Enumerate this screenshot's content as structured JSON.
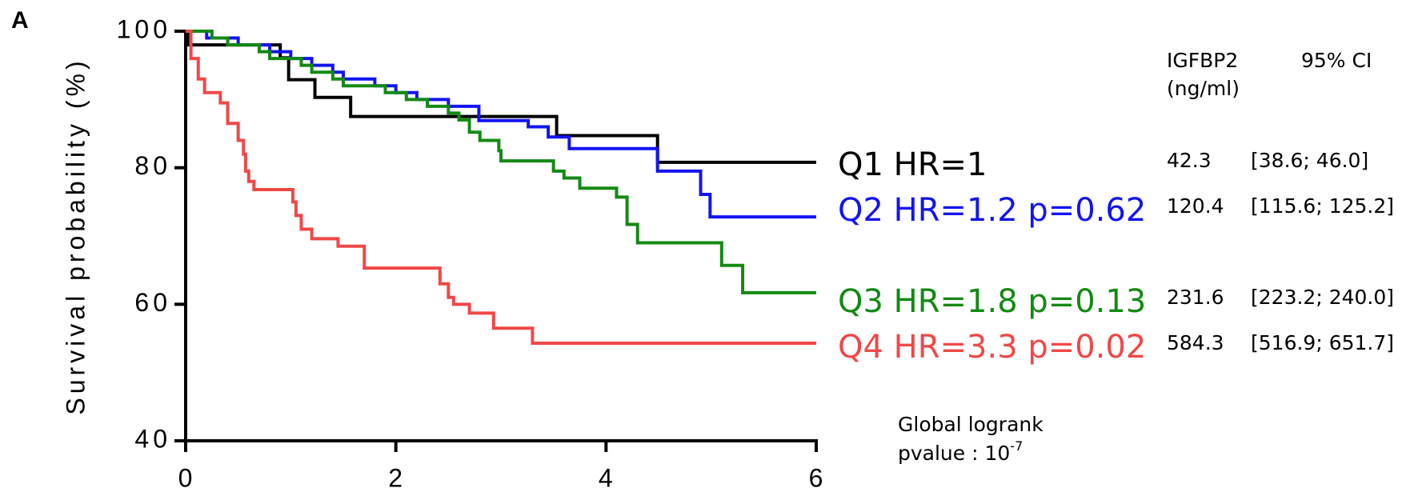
{
  "chart_data": {
    "type": "step",
    "panel": "A",
    "ylabel": "Survival probability (%)",
    "xlim": [
      0,
      6
    ],
    "xticks": [
      0,
      2,
      4,
      6
    ],
    "ylim": [
      40,
      100
    ],
    "yticks": [
      40,
      60,
      80,
      100
    ],
    "table_header": [
      "IGFBP2",
      "(ng/ml)",
      "95% CI"
    ],
    "logrank": [
      "Global logrank",
      "pvalue : 10",
      "-7"
    ],
    "series": [
      {
        "name": "Q1 HR=1",
        "color": "#000000",
        "median": 42.3,
        "ci": "[38.6; 46.0]",
        "x": [
          0,
          0.02,
          0.9,
          0.98,
          1.23,
          1.57,
          3.53,
          4.49,
          6
        ],
        "values": [
          100,
          98,
          96.1,
          92.9,
          90.3,
          87.5,
          84.7,
          80.8,
          80.8
        ]
      },
      {
        "name": "Q2 HR=1.2 p=0.62",
        "color": "#1414f0",
        "median": 120.4,
        "ci": "[115.6; 125.2]",
        "x": [
          0,
          0.2,
          0.5,
          0.8,
          1.0,
          1.2,
          1.4,
          1.5,
          1.8,
          2.0,
          2.2,
          2.5,
          2.79,
          3.26,
          3.45,
          3.65,
          4.49,
          4.9,
          4.99,
          6
        ],
        "values": [
          100,
          99,
          98,
          97,
          96,
          95,
          94,
          93,
          92,
          91,
          90,
          89,
          86.9,
          86,
          84.5,
          82.8,
          79.5,
          76.1,
          72.8,
          72.8
        ]
      },
      {
        "name": "Q3 HR=1.8 p=0.13",
        "color": "#138a13",
        "median": 231.6,
        "ci": "[223.2; 240.0]",
        "x": [
          0,
          0.25,
          0.4,
          0.7,
          0.8,
          1.1,
          1.2,
          1.4,
          1.5,
          1.9,
          2.1,
          2.3,
          2.5,
          2.6,
          2.7,
          2.8,
          2.98,
          3.0,
          3.5,
          3.6,
          3.75,
          4.1,
          4.2,
          4.3,
          5.1,
          5.3,
          6
        ],
        "values": [
          100,
          99,
          98,
          97,
          96,
          95,
          94,
          93,
          92,
          91,
          90,
          89,
          88,
          87,
          85.2,
          84,
          82.5,
          81,
          79.5,
          78.5,
          77,
          75.7,
          71.7,
          69,
          65.7,
          61.7,
          61.7
        ]
      },
      {
        "name": "Q4 HR=3.3 p=0.02",
        "color": "#f04848",
        "median": 584.3,
        "ci": "[516.9; 651.7]",
        "x": [
          0,
          0.05,
          0.12,
          0.18,
          0.33,
          0.4,
          0.5,
          0.55,
          0.57,
          0.6,
          0.65,
          1.02,
          1.05,
          1.1,
          1.2,
          1.45,
          1.7,
          2.42,
          2.5,
          2.55,
          2.7,
          2.93,
          3.3,
          6
        ],
        "values": [
          100,
          96,
          93,
          91,
          89.5,
          86.5,
          84,
          82,
          79.5,
          78,
          76.8,
          75,
          73,
          71,
          69.6,
          68.5,
          65.3,
          63,
          61,
          60,
          58.7,
          56.5,
          54.3,
          54.3
        ]
      }
    ]
  }
}
